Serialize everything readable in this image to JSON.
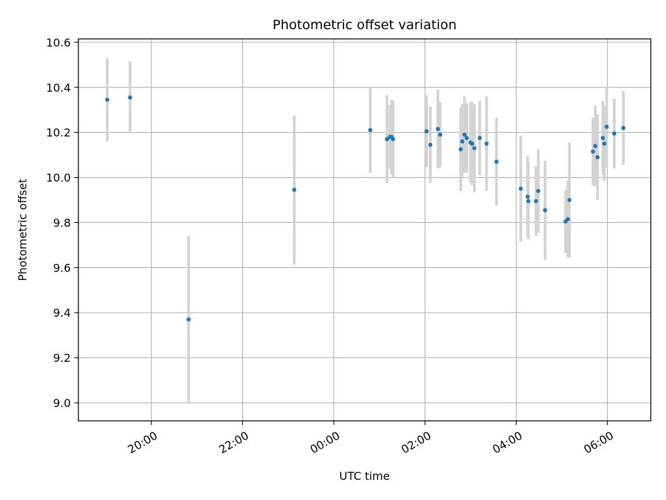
{
  "chart_data": {
    "type": "scatter",
    "title": "Photometric offset variation",
    "xlabel": "UTC time",
    "ylabel": "Photometric offset",
    "x_unit": "UTC clock time, night spanning midnight",
    "xlim": [
      "18:24",
      "06:57"
    ],
    "ylim": [
      8.92,
      10.615
    ],
    "x_ticks": [
      "20:00",
      "22:00",
      "00:00",
      "02:00",
      "04:00",
      "06:00"
    ],
    "y_ticks": [
      9.0,
      9.2,
      9.4,
      9.6,
      9.8,
      10.0,
      10.2,
      10.4,
      10.6
    ],
    "y_tick_labels": [
      "9.0",
      "9.2",
      "9.4",
      "9.6",
      "9.8",
      "10.0",
      "10.2",
      "10.4",
      "10.6"
    ],
    "grid": true,
    "legend": "none",
    "colors": {
      "point": "#1f77b4",
      "errorbar": "#d3d3d3",
      "grid": "#b0b0b0",
      "axes": "#000000"
    },
    "points": [
      {
        "x": "19:02",
        "y": 10.345,
        "err": 0.185
      },
      {
        "x": "19:32",
        "y": 10.355,
        "err": 0.16
      },
      {
        "x": "20:49",
        "y": 9.37,
        "err": 0.37
      },
      {
        "x": "23:08",
        "y": 9.945,
        "err": 0.33
      },
      {
        "x": "00:48",
        "y": 10.21,
        "err": 0.19
      },
      {
        "x": "01:10",
        "y": 10.17,
        "err": 0.195
      },
      {
        "x": "01:14",
        "y": 10.18,
        "err": 0.14
      },
      {
        "x": "01:16",
        "y": 10.18,
        "err": 0.165
      },
      {
        "x": "01:18",
        "y": 10.17,
        "err": 0.17
      },
      {
        "x": "02:02",
        "y": 10.205,
        "err": 0.16
      },
      {
        "x": "02:07",
        "y": 10.145,
        "err": 0.17
      },
      {
        "x": "02:17",
        "y": 10.215,
        "err": 0.175
      },
      {
        "x": "02:20",
        "y": 10.19,
        "err": 0.145
      },
      {
        "x": "02:47",
        "y": 10.125,
        "err": 0.185
      },
      {
        "x": "02:49",
        "y": 10.16,
        "err": 0.165
      },
      {
        "x": "02:52",
        "y": 10.19,
        "err": 0.17
      },
      {
        "x": "02:55",
        "y": 10.175,
        "err": 0.155
      },
      {
        "x": "03:00",
        "y": 10.155,
        "err": 0.18
      },
      {
        "x": "03:02",
        "y": 10.15,
        "err": 0.185
      },
      {
        "x": "03:05",
        "y": 10.13,
        "err": 0.195
      },
      {
        "x": "03:12",
        "y": 10.175,
        "err": 0.165
      },
      {
        "x": "03:21",
        "y": 10.15,
        "err": 0.21
      },
      {
        "x": "03:34",
        "y": 10.07,
        "err": 0.195
      },
      {
        "x": "04:06",
        "y": 9.95,
        "err": 0.235
      },
      {
        "x": "04:15",
        "y": 9.915,
        "err": 0.18
      },
      {
        "x": "04:16",
        "y": 9.895,
        "err": 0.17
      },
      {
        "x": "04:26",
        "y": 9.895,
        "err": 0.155
      },
      {
        "x": "04:29",
        "y": 9.94,
        "err": 0.185
      },
      {
        "x": "04:38",
        "y": 9.855,
        "err": 0.22
      },
      {
        "x": "05:05",
        "y": 9.805,
        "err": 0.14
      },
      {
        "x": "05:08",
        "y": 9.815,
        "err": 0.17
      },
      {
        "x": "05:10",
        "y": 9.9,
        "err": 0.255
      },
      {
        "x": "05:41",
        "y": 10.115,
        "err": 0.15
      },
      {
        "x": "05:44",
        "y": 10.14,
        "err": 0.18
      },
      {
        "x": "05:47",
        "y": 10.09,
        "err": 0.19
      },
      {
        "x": "05:54",
        "y": 10.175,
        "err": 0.165
      },
      {
        "x": "05:56",
        "y": 10.15,
        "err": 0.165
      },
      {
        "x": "05:59",
        "y": 10.225,
        "err": 0.18
      },
      {
        "x": "06:09",
        "y": 10.195,
        "err": 0.155
      },
      {
        "x": "06:21",
        "y": 10.22,
        "err": 0.165
      }
    ]
  }
}
